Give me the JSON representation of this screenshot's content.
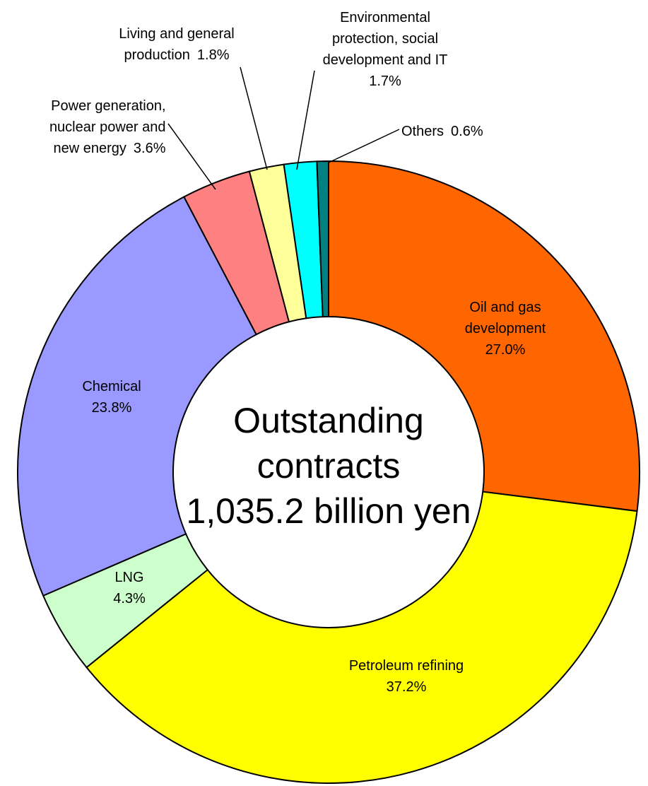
{
  "chart_data": {
    "type": "donut",
    "center_label": [
      "Outstanding",
      "contracts",
      "1,035.2 billion yen"
    ],
    "categories": [
      "Oil and gas development",
      "Petroleum refining",
      "LNG",
      "Chemical",
      "Power generation, nuclear power and new energy",
      "Living and general production",
      "Environmental protection, social development and IT",
      "Others"
    ],
    "values": [
      27.0,
      37.2,
      4.3,
      23.8,
      3.6,
      1.8,
      1.7,
      0.6
    ],
    "value_labels": [
      "27.0%",
      "37.2%",
      "4.3%",
      "23.8%",
      "3.6%",
      "1.8%",
      "1.7%",
      "0.6%"
    ],
    "colors": [
      "#ff6600",
      "#ffff00",
      "#ccffcc",
      "#9999ff",
      "#ff8080",
      "#ffff99",
      "#00ffff",
      "#008080"
    ]
  }
}
